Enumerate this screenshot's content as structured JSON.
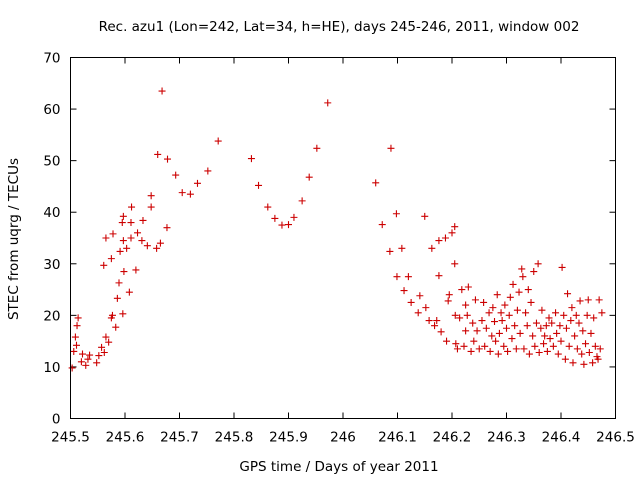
{
  "chart_data": {
    "type": "scatter",
    "title": "Rec. azu1 (Lon=242, Lat=34, h=HE), days 245-246, 2011, window 002",
    "xlabel": "GPS time / Days of year 2011",
    "ylabel": "STEC from uqrg / TECUs",
    "xlim": [
      245.5,
      246.5
    ],
    "ylim": [
      0,
      70
    ],
    "xticks": [
      "245.5",
      "245.6",
      "245.7",
      "245.8",
      "245.9",
      "246",
      "246.1",
      "246.2",
      "246.3",
      "246.4",
      "246.5"
    ],
    "yticks": [
      "0",
      "10",
      "20",
      "30",
      "40",
      "50",
      "60",
      "70"
    ],
    "grid": false,
    "marker": "+",
    "marker_color": "#cc0000",
    "series": [
      {
        "points": [
          [
            245.503,
            9.8
          ],
          [
            245.506,
            13.0
          ],
          [
            245.509,
            15.8
          ],
          [
            245.512,
            18.0
          ],
          [
            245.514,
            19.5
          ],
          [
            245.511,
            14.2
          ],
          [
            245.52,
            11.0
          ],
          [
            245.522,
            12.5
          ],
          [
            245.528,
            10.3
          ],
          [
            245.532,
            11.5
          ],
          [
            245.535,
            12.3
          ],
          [
            245.548,
            10.8
          ],
          [
            245.552,
            12.2
          ],
          [
            245.557,
            13.8
          ],
          [
            245.562,
            12.8
          ],
          [
            245.565,
            15.8
          ],
          [
            245.561,
            29.7
          ],
          [
            245.565,
            35.0
          ],
          [
            245.57,
            14.8
          ],
          [
            245.575,
            19.5
          ],
          [
            245.577,
            20.0
          ],
          [
            245.575,
            31.0
          ],
          [
            245.578,
            35.8
          ],
          [
            245.583,
            17.7
          ],
          [
            245.586,
            23.3
          ],
          [
            245.589,
            26.3
          ],
          [
            245.591,
            32.4
          ],
          [
            245.596,
            20.3
          ],
          [
            245.598,
            28.5
          ],
          [
            245.597,
            34.5
          ],
          [
            245.595,
            38.0
          ],
          [
            245.597,
            39.2
          ],
          [
            245.603,
            33.0
          ],
          [
            245.608,
            24.5
          ],
          [
            245.611,
            35.0
          ],
          [
            245.611,
            38.0
          ],
          [
            245.612,
            41.0
          ],
          [
            245.62,
            28.8
          ],
          [
            245.623,
            36.0
          ],
          [
            245.631,
            34.5
          ],
          [
            245.633,
            38.4
          ],
          [
            245.641,
            33.5
          ],
          [
            245.648,
            43.2
          ],
          [
            245.648,
            41.0
          ],
          [
            245.658,
            33.0
          ],
          [
            245.66,
            51.2
          ],
          [
            245.665,
            34.0
          ],
          [
            245.668,
            63.5
          ],
          [
            245.677,
            37.0
          ],
          [
            245.678,
            50.3
          ],
          [
            245.693,
            47.2
          ],
          [
            245.705,
            43.8
          ],
          [
            245.72,
            43.5
          ],
          [
            245.733,
            45.6
          ],
          [
            245.752,
            48.0
          ],
          [
            245.771,
            53.8
          ],
          [
            245.832,
            50.4
          ],
          [
            245.845,
            45.2
          ],
          [
            245.862,
            41.0
          ],
          [
            245.875,
            38.8
          ],
          [
            245.888,
            37.5
          ],
          [
            245.9,
            37.6
          ],
          [
            245.91,
            39.0
          ],
          [
            245.925,
            42.2
          ],
          [
            245.938,
            46.8
          ],
          [
            245.952,
            52.4
          ],
          [
            245.972,
            61.2
          ],
          [
            246.06,
            45.7
          ],
          [
            246.072,
            37.6
          ],
          [
            246.086,
            32.4
          ],
          [
            246.088,
            52.4
          ],
          [
            246.098,
            39.7
          ],
          [
            246.099,
            27.5
          ],
          [
            246.108,
            33.0
          ],
          [
            246.112,
            24.8
          ],
          [
            246.12,
            27.5
          ],
          [
            246.125,
            22.5
          ],
          [
            246.138,
            20.5
          ],
          [
            246.141,
            23.8
          ],
          [
            246.15,
            39.2
          ],
          [
            246.152,
            21.5
          ],
          [
            246.158,
            19.0
          ],
          [
            246.163,
            33.0
          ],
          [
            246.168,
            18.0
          ],
          [
            246.172,
            19.0
          ],
          [
            246.176,
            27.7
          ],
          [
            246.176,
            34.5
          ],
          [
            246.18,
            16.8
          ],
          [
            246.188,
            35.0
          ],
          [
            246.19,
            15.0
          ],
          [
            246.193,
            22.8
          ],
          [
            246.195,
            24.0
          ],
          [
            246.2,
            36.0
          ],
          [
            246.205,
            37.2
          ],
          [
            246.205,
            30.0
          ],
          [
            246.206,
            20.0
          ],
          [
            246.207,
            14.5
          ],
          [
            246.21,
            13.5
          ],
          [
            246.214,
            19.5
          ],
          [
            246.218,
            25.0
          ],
          [
            246.222,
            14.0
          ],
          [
            246.225,
            22.0
          ],
          [
            246.225,
            17.0
          ],
          [
            246.228,
            20.0
          ],
          [
            246.23,
            25.5
          ],
          [
            246.235,
            13.0
          ],
          [
            246.238,
            18.5
          ],
          [
            246.24,
            15.0
          ],
          [
            246.243,
            23.0
          ],
          [
            246.246,
            17.0
          ],
          [
            246.25,
            13.5
          ],
          [
            246.255,
            19.0
          ],
          [
            246.258,
            22.5
          ],
          [
            246.26,
            14.0
          ],
          [
            246.263,
            17.5
          ],
          [
            246.268,
            20.5
          ],
          [
            246.27,
            13.0
          ],
          [
            246.273,
            16.0
          ],
          [
            246.275,
            21.5
          ],
          [
            246.278,
            18.8
          ],
          [
            246.28,
            15.0
          ],
          [
            246.283,
            24.0
          ],
          [
            246.285,
            12.5
          ],
          [
            246.287,
            16.5
          ],
          [
            246.29,
            20.5
          ],
          [
            246.292,
            19.0
          ],
          [
            246.295,
            14.0
          ],
          [
            246.297,
            22.0
          ],
          [
            246.3,
            17.5
          ],
          [
            246.302,
            13.0
          ],
          [
            246.305,
            20.0
          ],
          [
            246.307,
            23.5
          ],
          [
            246.31,
            15.5
          ],
          [
            246.312,
            26.0
          ],
          [
            246.315,
            18.0
          ],
          [
            246.318,
            13.5
          ],
          [
            246.32,
            21.0
          ],
          [
            246.323,
            24.5
          ],
          [
            246.325,
            16.5
          ],
          [
            246.328,
            29.0
          ],
          [
            246.33,
            27.5
          ],
          [
            246.332,
            13.5
          ],
          [
            246.335,
            20.5
          ],
          [
            246.338,
            18.0
          ],
          [
            246.34,
            25.0
          ],
          [
            246.342,
            12.5
          ],
          [
            246.345,
            22.5
          ],
          [
            246.348,
            16.0
          ],
          [
            246.35,
            28.5
          ],
          [
            246.352,
            14.0
          ],
          [
            246.355,
            18.5
          ],
          [
            246.358,
            30.0
          ],
          [
            246.36,
            12.8
          ],
          [
            246.363,
            17.5
          ],
          [
            246.365,
            21.0
          ],
          [
            246.368,
            14.5
          ],
          [
            246.37,
            16.0
          ],
          [
            246.373,
            18.0
          ],
          [
            246.375,
            13.0
          ],
          [
            246.378,
            19.5
          ],
          [
            246.38,
            15.5
          ],
          [
            246.383,
            18.5
          ],
          [
            246.386,
            14.0
          ],
          [
            246.39,
            20.5
          ],
          [
            246.392,
            16.5
          ],
          [
            246.395,
            12.5
          ],
          [
            246.398,
            18.0
          ],
          [
            246.4,
            15.0
          ],
          [
            246.402,
            29.3
          ],
          [
            246.405,
            20.0
          ],
          [
            246.408,
            11.5
          ],
          [
            246.41,
            17.5
          ],
          [
            246.412,
            24.2
          ],
          [
            246.415,
            14.0
          ],
          [
            246.418,
            19.0
          ],
          [
            246.42,
            21.5
          ],
          [
            246.422,
            10.8
          ],
          [
            246.425,
            16.0
          ],
          [
            246.428,
            20.0
          ],
          [
            246.43,
            13.5
          ],
          [
            246.433,
            18.5
          ],
          [
            246.435,
            22.8
          ],
          [
            246.438,
            12.5
          ],
          [
            246.44,
            17.0
          ],
          [
            246.442,
            10.5
          ],
          [
            246.445,
            14.5
          ],
          [
            246.448,
            20.0
          ],
          [
            246.45,
            23.0
          ],
          [
            246.452,
            12.8
          ],
          [
            246.455,
            16.5
          ],
          [
            246.458,
            10.8
          ],
          [
            246.46,
            19.5
          ],
          [
            246.463,
            14.0
          ],
          [
            246.466,
            12.0
          ],
          [
            246.468,
            11.5
          ],
          [
            246.47,
            23.0
          ],
          [
            246.472,
            13.5
          ],
          [
            246.475,
            20.5
          ]
        ]
      }
    ]
  }
}
